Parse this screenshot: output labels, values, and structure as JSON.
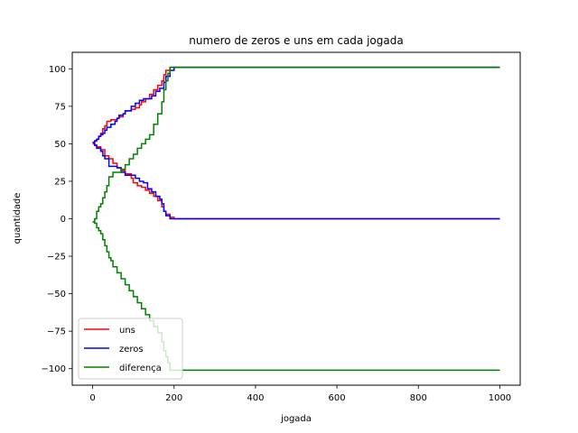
{
  "chart_data": {
    "type": "line",
    "title": "numero de zeros e uns em cada jogada",
    "xlabel": "jogada",
    "ylabel": "quantidade",
    "xlim": [
      -50,
      1050
    ],
    "ylim": [
      -111,
      111
    ],
    "xticks": [
      0,
      200,
      400,
      600,
      800,
      1000
    ],
    "yticks": [
      -100,
      -75,
      -50,
      -25,
      0,
      25,
      50,
      75,
      100
    ],
    "grid": false,
    "legend_position": "lower-left",
    "series": [
      {
        "name": "uns",
        "color": "#ff0000",
        "lines": [
          [
            [
              0,
              50
            ],
            [
              5,
              52
            ],
            [
              10,
              53
            ],
            [
              15,
              55
            ],
            [
              20,
              57
            ],
            [
              25,
              60
            ],
            [
              30,
              62
            ],
            [
              35,
              65
            ],
            [
              45,
              66
            ],
            [
              55,
              66
            ],
            [
              60,
              67
            ],
            [
              65,
              68
            ],
            [
              75,
              70
            ],
            [
              80,
              72
            ],
            [
              95,
              73
            ],
            [
              105,
              74
            ],
            [
              115,
              76
            ],
            [
              120,
              78
            ],
            [
              130,
              80
            ],
            [
              140,
              83
            ],
            [
              150,
              86
            ],
            [
              160,
              89
            ],
            [
              170,
              92
            ],
            [
              175,
              96
            ],
            [
              180,
              99
            ],
            [
              190,
              101
            ],
            [
              1000,
              101
            ]
          ],
          [
            [
              0,
              50
            ],
            [
              5,
              49
            ],
            [
              10,
              48
            ],
            [
              20,
              46
            ],
            [
              30,
              42
            ],
            [
              40,
              40
            ],
            [
              50,
              37
            ],
            [
              60,
              34
            ],
            [
              70,
              32
            ],
            [
              80,
              30
            ],
            [
              95,
              27
            ],
            [
              100,
              24
            ],
            [
              110,
              22
            ],
            [
              120,
              21
            ],
            [
              130,
              19
            ],
            [
              140,
              17
            ],
            [
              150,
              15
            ],
            [
              160,
              12
            ],
            [
              170,
              8
            ],
            [
              175,
              5
            ],
            [
              180,
              3
            ],
            [
              190,
              1
            ],
            [
              200,
              0
            ],
            [
              1000,
              0
            ]
          ]
        ]
      },
      {
        "name": "zeros",
        "color": "#0000ff",
        "lines": [
          [
            [
              0,
              51
            ],
            [
              5,
              52
            ],
            [
              10,
              53
            ],
            [
              15,
              55
            ],
            [
              20,
              56
            ],
            [
              25,
              57
            ],
            [
              30,
              59
            ],
            [
              35,
              61
            ],
            [
              45,
              63
            ],
            [
              55,
              65
            ],
            [
              60,
              67
            ],
            [
              65,
              69
            ],
            [
              75,
              70
            ],
            [
              80,
              72
            ],
            [
              95,
              75
            ],
            [
              105,
              77
            ],
            [
              115,
              79
            ],
            [
              125,
              80
            ],
            [
              135,
              80
            ],
            [
              145,
              82
            ],
            [
              155,
              85
            ],
            [
              165,
              87
            ],
            [
              175,
              91
            ],
            [
              180,
              95
            ],
            [
              190,
              99
            ],
            [
              200,
              101
            ],
            [
              1000,
              101
            ]
          ],
          [
            [
              0,
              51
            ],
            [
              5,
              49
            ],
            [
              10,
              47
            ],
            [
              20,
              45
            ],
            [
              25,
              42
            ],
            [
              30,
              40
            ],
            [
              40,
              35
            ],
            [
              50,
              35
            ],
            [
              60,
              34
            ],
            [
              70,
              31
            ],
            [
              80,
              29
            ],
            [
              95,
              29
            ],
            [
              105,
              27
            ],
            [
              115,
              25
            ],
            [
              125,
              24
            ],
            [
              135,
              20
            ],
            [
              145,
              18
            ],
            [
              155,
              15
            ],
            [
              165,
              13
            ],
            [
              170,
              10
            ],
            [
              175,
              5
            ],
            [
              180,
              2
            ],
            [
              190,
              0
            ],
            [
              1000,
              0
            ]
          ]
        ]
      },
      {
        "name": "diferença",
        "color": "#008000",
        "lines": [
          [
            [
              0,
              -2
            ],
            [
              5,
              0
            ],
            [
              10,
              5
            ],
            [
              15,
              8
            ],
            [
              20,
              10
            ],
            [
              25,
              14
            ],
            [
              30,
              18
            ],
            [
              35,
              22
            ],
            [
              40,
              28
            ],
            [
              50,
              31
            ],
            [
              65,
              31
            ],
            [
              70,
              33
            ],
            [
              80,
              36
            ],
            [
              90,
              40
            ],
            [
              100,
              43
            ],
            [
              110,
              47
            ],
            [
              120,
              50
            ],
            [
              130,
              53
            ],
            [
              140,
              56
            ],
            [
              150,
              63
            ],
            [
              160,
              70
            ],
            [
              170,
              78
            ],
            [
              175,
              86
            ],
            [
              180,
              92
            ],
            [
              185,
              97
            ],
            [
              190,
              101
            ],
            [
              1000,
              101
            ]
          ],
          [
            [
              0,
              -2
            ],
            [
              5,
              -3
            ],
            [
              10,
              -6
            ],
            [
              15,
              -8
            ],
            [
              20,
              -10
            ],
            [
              25,
              -14
            ],
            [
              30,
              -18
            ],
            [
              35,
              -22
            ],
            [
              40,
              -26
            ],
            [
              45,
              -28
            ],
            [
              50,
              -32
            ],
            [
              60,
              -36
            ],
            [
              70,
              -40
            ],
            [
              80,
              -44
            ],
            [
              90,
              -48
            ],
            [
              100,
              -52
            ],
            [
              110,
              -56
            ],
            [
              120,
              -60
            ],
            [
              130,
              -64
            ],
            [
              140,
              -68
            ],
            [
              150,
              -72
            ],
            [
              160,
              -76
            ],
            [
              170,
              -82
            ],
            [
              175,
              -88
            ],
            [
              180,
              -92
            ],
            [
              185,
              -96
            ],
            [
              190,
              -101
            ],
            [
              1000,
              -101
            ]
          ]
        ]
      }
    ]
  }
}
